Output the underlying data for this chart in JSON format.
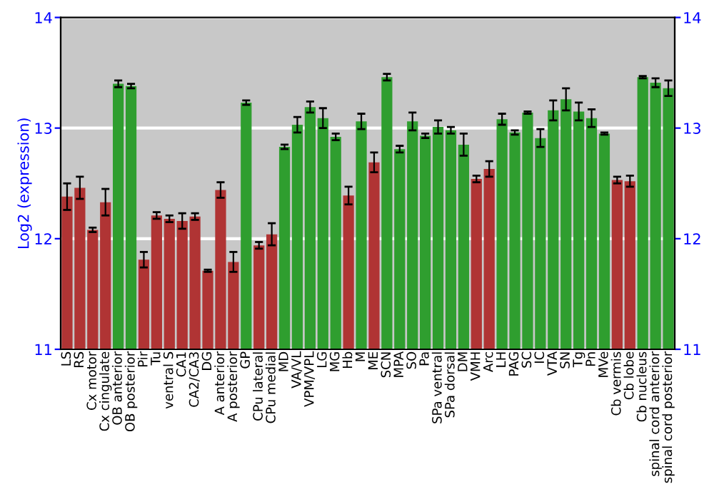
{
  "chart_data": {
    "type": "bar",
    "ylabel": "Log2 (expression)",
    "categories": [
      "LS",
      "RS",
      "Cx motor",
      "Cx cingulate",
      "OB anterior",
      "OB posterior",
      "Pir",
      "Tu",
      "ventral S",
      "CA1",
      "CA2/CA3",
      "DG",
      "A anterior",
      "A posterior",
      "GP",
      "CPu lateral",
      "CPu medial",
      "MD",
      "VA/VL",
      "VPM/VPL",
      "LG",
      "MG",
      "Hb",
      "M",
      "ME",
      "SCN",
      "MPA",
      "SO",
      "Pa",
      "SPa ventral",
      "SPa dorsal",
      "DM",
      "VMH",
      "Arc",
      "LH",
      "PAG",
      "SC",
      "IC",
      "VTA",
      "SN",
      "Tg",
      "Pn",
      "MVe",
      "Cb vermis",
      "Cb lobe",
      "Cb nucleus",
      "spinal cord anterior",
      "spinal cord posterior"
    ],
    "values": [
      12.38,
      12.46,
      12.08,
      12.33,
      13.4,
      13.38,
      11.81,
      12.21,
      12.18,
      12.16,
      12.2,
      11.71,
      12.44,
      11.79,
      13.23,
      11.94,
      12.04,
      12.83,
      13.03,
      13.19,
      13.09,
      12.92,
      12.39,
      13.06,
      12.69,
      13.46,
      12.81,
      13.06,
      12.93,
      13.01,
      12.98,
      12.85,
      12.54,
      12.63,
      13.08,
      12.96,
      13.14,
      12.91,
      13.16,
      13.26,
      13.15,
      13.09,
      12.95,
      12.53,
      12.52,
      13.46,
      13.41,
      13.36
    ],
    "errors": [
      0.12,
      0.1,
      0.02,
      0.12,
      0.03,
      0.02,
      0.07,
      0.03,
      0.03,
      0.07,
      0.03,
      0.01,
      0.07,
      0.09,
      0.02,
      0.03,
      0.1,
      0.02,
      0.07,
      0.05,
      0.09,
      0.03,
      0.08,
      0.07,
      0.09,
      0.03,
      0.03,
      0.08,
      0.02,
      0.06,
      0.03,
      0.1,
      0.03,
      0.07,
      0.05,
      0.02,
      0.01,
      0.08,
      0.09,
      0.1,
      0.08,
      0.08,
      0.01,
      0.03,
      0.05,
      0.01,
      0.04,
      0.07
    ],
    "colors": [
      "#b03434",
      "#b03434",
      "#b03434",
      "#b03434",
      "#2f9e2f",
      "#2f9e2f",
      "#b03434",
      "#b03434",
      "#b03434",
      "#b03434",
      "#b03434",
      "#b03434",
      "#b03434",
      "#b03434",
      "#2f9e2f",
      "#b03434",
      "#b03434",
      "#2f9e2f",
      "#2f9e2f",
      "#2f9e2f",
      "#2f9e2f",
      "#2f9e2f",
      "#b03434",
      "#2f9e2f",
      "#b03434",
      "#2f9e2f",
      "#2f9e2f",
      "#2f9e2f",
      "#2f9e2f",
      "#2f9e2f",
      "#2f9e2f",
      "#2f9e2f",
      "#b03434",
      "#b03434",
      "#2f9e2f",
      "#2f9e2f",
      "#2f9e2f",
      "#2f9e2f",
      "#2f9e2f",
      "#2f9e2f",
      "#2f9e2f",
      "#2f9e2f",
      "#2f9e2f",
      "#b03434",
      "#b03434",
      "#2f9e2f",
      "#2f9e2f",
      "#2f9e2f"
    ],
    "ylim": [
      11,
      14
    ],
    "yticks": [
      11,
      12,
      13,
      14
    ],
    "y2lim": [
      11,
      14
    ],
    "y2ticks": [
      11,
      12,
      13,
      14
    ],
    "grid": "y"
  }
}
